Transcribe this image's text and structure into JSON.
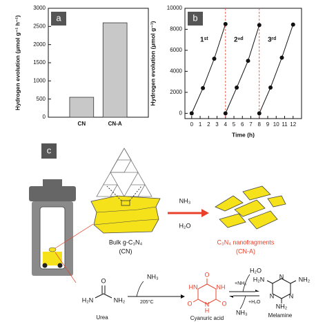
{
  "chart_data": [
    {
      "type": "bar",
      "panel_label": "a",
      "y_label": "Hydrogen evolution (μmol g⁻¹ h⁻¹)",
      "categories": [
        "CN",
        "CN-A"
      ],
      "values": [
        550,
        2600
      ],
      "color": "#c8c8c8",
      "ylim": [
        0,
        3000
      ],
      "yticks": [
        0,
        500,
        1000,
        1500,
        2000,
        2500,
        3000
      ]
    },
    {
      "type": "line",
      "panel_label": "b",
      "x_label": "Time (h)",
      "y_label": "Hydrogen evolution (μmol g⁻¹)",
      "series": [
        {
          "x": [
            0,
            1.33,
            2.67,
            4
          ],
          "values": [
            0,
            2400,
            5200,
            8500
          ],
          "color": "#111111"
        },
        {
          "x": [
            4,
            5.33,
            6.67,
            8
          ],
          "values": [
            0,
            2450,
            5000,
            8400
          ],
          "color": "#111111"
        },
        {
          "x": [
            8,
            9.33,
            10.67,
            12
          ],
          "values": [
            0,
            2450,
            5300,
            8450
          ],
          "color": "#111111"
        }
      ],
      "vlines": [
        4,
        8
      ],
      "vline_color": "#e8402a",
      "annotations": [
        "1ˢᵗ",
        "2ⁿᵈ",
        "3ʳᵈ"
      ],
      "xlim": [
        -0.8,
        13
      ],
      "xticks": [
        0,
        1,
        2,
        3,
        4,
        5,
        6,
        7,
        8,
        9,
        10,
        11,
        12
      ],
      "ylim": [
        -500,
        10000
      ],
      "yticks": [
        0,
        2000,
        4000,
        6000,
        8000,
        10000
      ]
    }
  ],
  "diagram": {
    "panel_label": "c",
    "bulk": "Bulk g-C₃N₄",
    "bulk_abbr": "(CN)",
    "reagent_top": "NH₃",
    "reagent_bottom": "H₂O",
    "product": "C₃N₄ nanofragments",
    "product_abbr": "(CN-A)",
    "urea": {
      "name": "Urea",
      "o": "O",
      "left": "H₂N",
      "right": "NH₂"
    },
    "step1": {
      "gas": "NH₃",
      "temp": "205°C"
    },
    "cyanuric": {
      "name": "Cyanuric acid",
      "o1": "O",
      "o2": "O",
      "o3": "O",
      "n1": "HN",
      "n2": "NH",
      "n3": "N",
      "h3": "H"
    },
    "equilibrium": {
      "top": "+NH₃",
      "top_out": "H₂O",
      "bottom": "+H₂O",
      "bottom_out": "NH₃"
    },
    "melamine": {
      "name": "Melamine",
      "left": "H₂N",
      "right": "NH₂",
      "bottom": "NH₂",
      "n1": "N",
      "n2": "N",
      "n3": "N"
    }
  }
}
